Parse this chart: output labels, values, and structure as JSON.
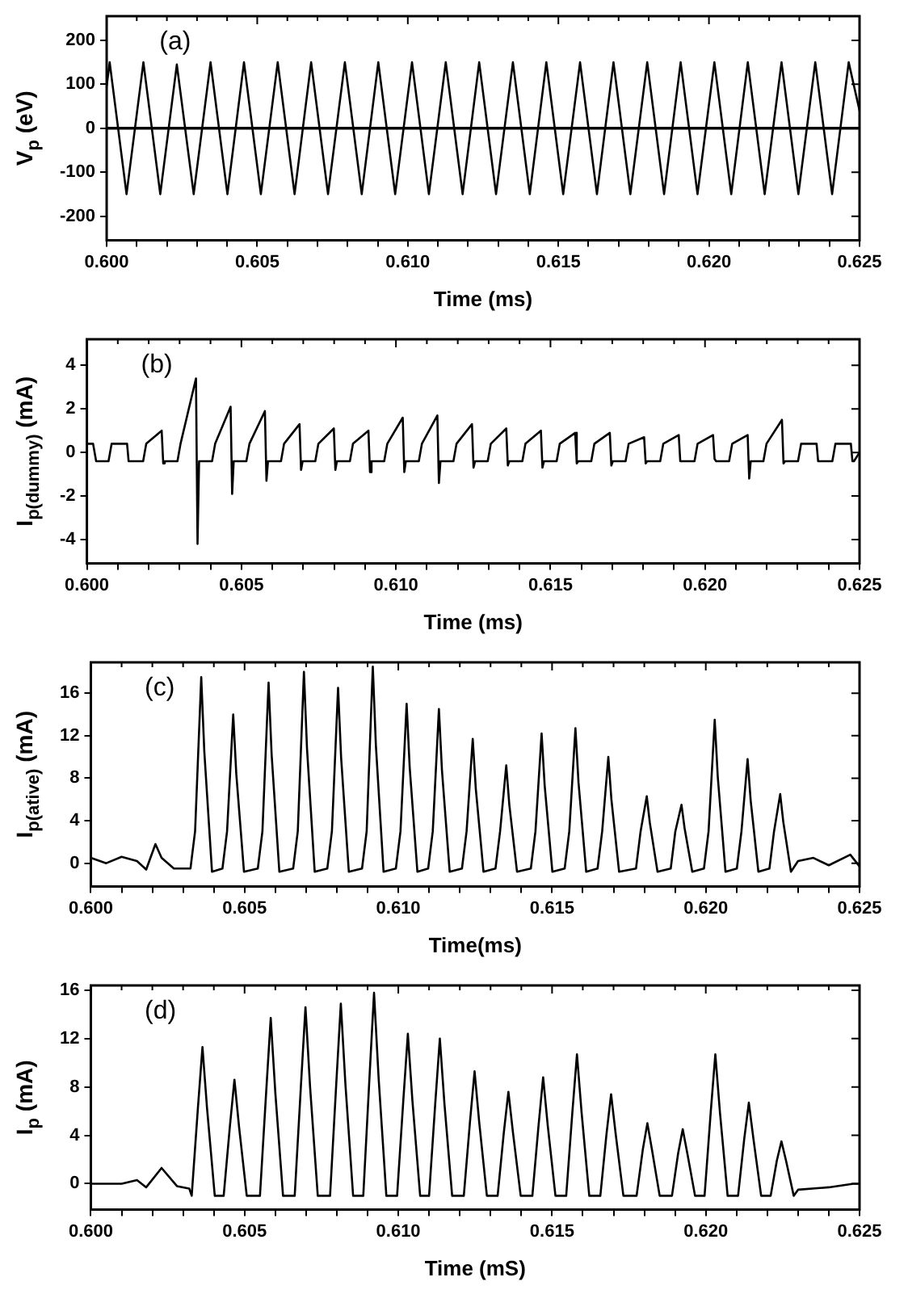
{
  "chart_data": [
    {
      "type": "line",
      "ylabel": "V$_{p}$ (eV)",
      "xlabel": "Time (ms)",
      "annotations": [
        "(a)"
      ],
      "marker": "none",
      "line_style": "solid",
      "grid": false,
      "legend": false,
      "xlim": [
        0.6,
        0.625
      ],
      "ylim": [
        -255,
        255
      ],
      "yticks": [
        -200,
        -100,
        0,
        100,
        200
      ],
      "xticks": [
        {
          "value": 0.6,
          "label": "0.600"
        },
        {
          "value": 0.601,
          "label": null
        },
        {
          "value": 0.602,
          "label": null
        },
        {
          "value": 0.603,
          "label": null
        },
        {
          "value": 0.604,
          "label": null
        },
        {
          "value": 0.605,
          "label": "0.605"
        },
        {
          "value": 0.606,
          "label": null
        },
        {
          "value": 0.607,
          "label": null
        },
        {
          "value": 0.608,
          "label": null
        },
        {
          "value": 0.609,
          "label": null
        },
        {
          "value": 0.61,
          "label": "0.610"
        },
        {
          "value": 0.611,
          "label": null
        },
        {
          "value": 0.612,
          "label": null
        },
        {
          "value": 0.613,
          "label": null
        },
        {
          "value": 0.614,
          "label": null
        },
        {
          "value": 0.615,
          "label": "0.615"
        },
        {
          "value": 0.616,
          "label": null
        },
        {
          "value": 0.617,
          "label": null
        },
        {
          "value": 0.618,
          "label": null
        },
        {
          "value": 0.619,
          "label": null
        },
        {
          "value": 0.62,
          "label": "0.620"
        },
        {
          "value": 0.621,
          "label": null
        },
        {
          "value": 0.622,
          "label": null
        },
        {
          "value": 0.623,
          "label": null
        },
        {
          "value": 0.624,
          "label": null
        },
        {
          "value": 0.625,
          "label": "0.625"
        }
      ],
      "ref_lines": [
        {
          "axis": "y",
          "value": 0,
          "color": "#000000"
        }
      ],
      "x": [
        0.6,
        0.6001,
        0.60066,
        0.60122,
        0.60178,
        0.60233,
        0.60289,
        0.60345,
        0.60401,
        0.60456,
        0.60512,
        0.60568,
        0.60624,
        0.60679,
        0.60735,
        0.60791,
        0.60847,
        0.60902,
        0.60958,
        0.61014,
        0.6107,
        0.61126,
        0.61182,
        0.61237,
        0.61293,
        0.61349,
        0.61405,
        0.6146,
        0.61516,
        0.61572,
        0.61628,
        0.61683,
        0.61739,
        0.61795,
        0.61851,
        0.61906,
        0.61962,
        0.62018,
        0.62074,
        0.62129,
        0.62185,
        0.62241,
        0.62297,
        0.62353,
        0.62409,
        0.62464,
        0.625
      ],
      "series": [
        {
          "color": "#000000",
          "values": [
            96,
            150,
            -150,
            150,
            -150,
            145,
            -150,
            150,
            -150,
            150,
            -150,
            150,
            -150,
            150,
            -150,
            150,
            -150,
            150,
            -150,
            150,
            -150,
            150,
            -150,
            150,
            -150,
            150,
            -150,
            150,
            -150,
            150,
            -150,
            150,
            -150,
            150,
            -150,
            150,
            -150,
            150,
            -150,
            150,
            -150,
            150,
            -150,
            150,
            -150,
            150,
            40
          ]
        }
      ]
    },
    {
      "type": "line",
      "ylabel": "I$_{p(dummy)}$ (mA)",
      "xlabel": "Time (ms)",
      "annotations": [
        "(b)"
      ],
      "marker": "none",
      "line_style": "solid",
      "grid": false,
      "legend": false,
      "xlim": [
        0.6,
        0.625
      ],
      "ylim": [
        -5.1,
        5.2
      ],
      "yticks": [
        -4,
        -2,
        0,
        2,
        4
      ],
      "xticks": [
        {
          "value": 0.6,
          "label": "0.600"
        },
        {
          "value": 0.601,
          "label": null
        },
        {
          "value": 0.602,
          "label": null
        },
        {
          "value": 0.603,
          "label": null
        },
        {
          "value": 0.604,
          "label": null
        },
        {
          "value": 0.605,
          "label": "0.605"
        },
        {
          "value": 0.606,
          "label": null
        },
        {
          "value": 0.607,
          "label": null
        },
        {
          "value": 0.608,
          "label": null
        },
        {
          "value": 0.609,
          "label": null
        },
        {
          "value": 0.61,
          "label": "0.610"
        },
        {
          "value": 0.611,
          "label": null
        },
        {
          "value": 0.612,
          "label": null
        },
        {
          "value": 0.613,
          "label": null
        },
        {
          "value": 0.614,
          "label": null
        },
        {
          "value": 0.615,
          "label": "0.615"
        },
        {
          "value": 0.616,
          "label": null
        },
        {
          "value": 0.617,
          "label": null
        },
        {
          "value": 0.618,
          "label": null
        },
        {
          "value": 0.619,
          "label": null
        },
        {
          "value": 0.62,
          "label": "0.620"
        },
        {
          "value": 0.621,
          "label": null
        },
        {
          "value": 0.622,
          "label": null
        },
        {
          "value": 0.623,
          "label": null
        },
        {
          "value": 0.624,
          "label": null
        },
        {
          "value": 0.625,
          "label": "0.625"
        }
      ],
      "x": [
        0.6,
        0.6002,
        0.6003,
        0.6007,
        0.6008,
        0.6013,
        0.60135,
        0.6014,
        0.60182,
        0.60192,
        0.60242,
        0.60247,
        0.60252,
        0.60293,
        0.60303,
        0.60353,
        0.60358,
        0.60363,
        0.60405,
        0.60415,
        0.60465,
        0.6047,
        0.60475,
        0.60516,
        0.60526,
        0.60576,
        0.60581,
        0.60586,
        0.60628,
        0.60638,
        0.60688,
        0.60693,
        0.60698,
        0.60739,
        0.60749,
        0.60799,
        0.60804,
        0.60809,
        0.60851,
        0.60861,
        0.60911,
        0.60916,
        0.60921,
        0.60962,
        0.60972,
        0.61022,
        0.61027,
        0.61032,
        0.61074,
        0.61084,
        0.61134,
        0.61139,
        0.61144,
        0.61186,
        0.61196,
        0.61246,
        0.61251,
        0.61256,
        0.61297,
        0.61307,
        0.61357,
        0.61362,
        0.61367,
        0.61409,
        0.61419,
        0.61469,
        0.61474,
        0.61479,
        0.6152,
        0.6153,
        0.6158,
        0.61585,
        0.6159,
        0.61632,
        0.61642,
        0.61692,
        0.61697,
        0.61702,
        0.61743,
        0.61753,
        0.61803,
        0.61808,
        0.61813,
        0.61855,
        0.61865,
        0.61915,
        0.6192,
        0.61925,
        0.61966,
        0.61976,
        0.62026,
        0.62031,
        0.62036,
        0.62078,
        0.62088,
        0.62138,
        0.62143,
        0.62148,
        0.62189,
        0.62199,
        0.62249,
        0.62254,
        0.62259,
        0.62301,
        0.62311,
        0.62361,
        0.62366,
        0.62371,
        0.62412,
        0.62422,
        0.62472,
        0.62477,
        0.62482,
        0.625
      ],
      "series": [
        {
          "color": "#000000",
          "values": [
            0.4,
            0.4,
            -0.4,
            -0.4,
            0.4,
            0.4,
            -0.4,
            -0.4,
            -0.4,
            0.4,
            1.0,
            -0.5,
            -0.4,
            -0.4,
            0.4,
            3.4,
            -4.2,
            -0.4,
            -0.4,
            0.4,
            2.1,
            -1.9,
            -0.4,
            -0.4,
            0.4,
            1.9,
            -1.3,
            -0.4,
            -0.4,
            0.4,
            1.3,
            -0.8,
            -0.4,
            -0.4,
            0.4,
            1.1,
            -0.8,
            -0.4,
            -0.4,
            0.4,
            1.0,
            -0.9,
            -0.4,
            -0.4,
            0.4,
            1.6,
            -0.9,
            -0.4,
            -0.4,
            0.4,
            1.7,
            -1.4,
            -0.4,
            -0.4,
            0.4,
            1.3,
            -0.7,
            -0.4,
            -0.4,
            0.4,
            1.1,
            -0.6,
            -0.4,
            -0.4,
            0.4,
            1.0,
            -0.7,
            -0.4,
            -0.4,
            0.4,
            0.9,
            -0.5,
            -0.4,
            -0.4,
            0.4,
            0.9,
            -0.6,
            -0.4,
            -0.4,
            0.4,
            0.7,
            -0.5,
            -0.4,
            -0.4,
            0.4,
            0.8,
            -0.4,
            -0.4,
            -0.4,
            0.4,
            0.8,
            -0.3,
            -0.4,
            -0.4,
            0.4,
            0.8,
            -1.2,
            -0.4,
            -0.4,
            0.4,
            1.5,
            -0.5,
            -0.4,
            -0.4,
            0.4,
            0.4,
            -0.4,
            -0.4,
            -0.4,
            0.4,
            0.4,
            -0.4,
            -0.4,
            0
          ]
        }
      ]
    },
    {
      "type": "line",
      "ylabel": "I$_{p(ative)}$ (mA)",
      "xlabel": "Time(ms)",
      "annotations": [
        "(c)"
      ],
      "marker": "none",
      "line_style": "solid",
      "grid": false,
      "legend": false,
      "xlim": [
        0.6,
        0.625
      ],
      "ylim": [
        -2.2,
        18.9
      ],
      "yticks": [
        0,
        4,
        8,
        12,
        16
      ],
      "xticks": [
        {
          "value": 0.6,
          "label": "0.600"
        },
        {
          "value": 0.601,
          "label": null
        },
        {
          "value": 0.602,
          "label": null
        },
        {
          "value": 0.603,
          "label": null
        },
        {
          "value": 0.604,
          "label": null
        },
        {
          "value": 0.605,
          "label": "0.605"
        },
        {
          "value": 0.606,
          "label": null
        },
        {
          "value": 0.607,
          "label": null
        },
        {
          "value": 0.608,
          "label": null
        },
        {
          "value": 0.609,
          "label": null
        },
        {
          "value": 0.61,
          "label": "0.610"
        },
        {
          "value": 0.611,
          "label": null
        },
        {
          "value": 0.612,
          "label": null
        },
        {
          "value": 0.613,
          "label": null
        },
        {
          "value": 0.614,
          "label": null
        },
        {
          "value": 0.615,
          "label": "0.615"
        },
        {
          "value": 0.616,
          "label": null
        },
        {
          "value": 0.617,
          "label": null
        },
        {
          "value": 0.618,
          "label": null
        },
        {
          "value": 0.619,
          "label": null
        },
        {
          "value": 0.62,
          "label": "0.620"
        },
        {
          "value": 0.621,
          "label": null
        },
        {
          "value": 0.622,
          "label": null
        },
        {
          "value": 0.623,
          "label": null
        },
        {
          "value": 0.624,
          "label": null
        },
        {
          "value": 0.625,
          "label": "0.625"
        }
      ],
      "x": [
        0.6,
        0.6005,
        0.601,
        0.6015,
        0.6018,
        0.6021,
        0.6023,
        0.6027,
        0.60324,
        0.60339,
        0.60359,
        0.60369,
        0.60394,
        0.60428,
        0.60443,
        0.60463,
        0.60473,
        0.60498,
        0.60543,
        0.60558,
        0.60578,
        0.60588,
        0.60613,
        0.60658,
        0.60673,
        0.60693,
        0.60703,
        0.60728,
        0.60769,
        0.60784,
        0.60804,
        0.60814,
        0.60839,
        0.60882,
        0.60897,
        0.60917,
        0.60927,
        0.60952,
        0.60992,
        0.61007,
        0.61027,
        0.61037,
        0.61062,
        0.61097,
        0.61112,
        0.61132,
        0.61142,
        0.61167,
        0.61207,
        0.61222,
        0.61242,
        0.61252,
        0.61277,
        0.61316,
        0.61331,
        0.61351,
        0.61361,
        0.61386,
        0.61431,
        0.61446,
        0.61466,
        0.61476,
        0.61501,
        0.61541,
        0.61556,
        0.61576,
        0.61586,
        0.61611,
        0.61648,
        0.61663,
        0.61683,
        0.61693,
        0.61718,
        0.61773,
        0.61788,
        0.61808,
        0.61818,
        0.61843,
        0.61886,
        0.61901,
        0.61921,
        0.61931,
        0.61956,
        0.61994,
        0.62009,
        0.62029,
        0.62039,
        0.62064,
        0.62101,
        0.62116,
        0.62136,
        0.62146,
        0.62171,
        0.62207,
        0.62222,
        0.62242,
        0.62252,
        0.62277,
        0.623,
        0.6235,
        0.624,
        0.6247,
        0.625
      ],
      "series": [
        {
          "color": "#000000",
          "values": [
            0.5,
            0,
            0.6,
            0.2,
            -0.6,
            1.8,
            0.5,
            -0.5,
            -0.5,
            3,
            17.5,
            10.5,
            -0.8,
            -0.5,
            3,
            14,
            8.4,
            -0.8,
            -0.5,
            3,
            17,
            10.2,
            -0.8,
            -0.5,
            3,
            18,
            10.8,
            -0.8,
            -0.5,
            3,
            16.5,
            9.9,
            -0.8,
            -0.5,
            3,
            18.5,
            11.1,
            -0.8,
            -0.5,
            3,
            15,
            9,
            -0.8,
            -0.5,
            3,
            14.5,
            8.7,
            -0.8,
            -0.5,
            3,
            11.7,
            7,
            -0.8,
            -0.5,
            3,
            9.2,
            5.5,
            -0.8,
            -0.5,
            3,
            12.2,
            7.3,
            -0.8,
            -0.5,
            3,
            12.7,
            7.6,
            -0.8,
            -0.5,
            3,
            10,
            6,
            -0.8,
            -0.5,
            3,
            6.3,
            3.8,
            -0.8,
            -0.5,
            3,
            5.5,
            3.3,
            -0.8,
            -0.5,
            3,
            13.5,
            8.1,
            -0.8,
            -0.5,
            3,
            9.8,
            5.9,
            -0.8,
            -0.5,
            3,
            6.5,
            3.9,
            -0.8,
            0.2,
            0.5,
            -0.2,
            0.8,
            -0.3
          ]
        }
      ]
    },
    {
      "type": "line",
      "ylabel": "I$_{p}$ (mA)",
      "xlabel": "Time (mS)",
      "annotations": [
        "(d)"
      ],
      "marker": "none",
      "line_style": "solid",
      "grid": false,
      "legend": false,
      "xlim": [
        0.6,
        0.625
      ],
      "ylim": [
        -2.15,
        16.4
      ],
      "yticks": [
        0,
        4,
        8,
        12,
        16
      ],
      "xticks": [
        {
          "value": 0.6,
          "label": "0.600"
        },
        {
          "value": 0.601,
          "label": null
        },
        {
          "value": 0.602,
          "label": null
        },
        {
          "value": 0.603,
          "label": null
        },
        {
          "value": 0.604,
          "label": null
        },
        {
          "value": 0.605,
          "label": "0.605"
        },
        {
          "value": 0.606,
          "label": null
        },
        {
          "value": 0.607,
          "label": null
        },
        {
          "value": 0.608,
          "label": null
        },
        {
          "value": 0.609,
          "label": null
        },
        {
          "value": 0.61,
          "label": "0.610"
        },
        {
          "value": 0.611,
          "label": null
        },
        {
          "value": 0.612,
          "label": null
        },
        {
          "value": 0.613,
          "label": null
        },
        {
          "value": 0.614,
          "label": null
        },
        {
          "value": 0.615,
          "label": "0.615"
        },
        {
          "value": 0.616,
          "label": null
        },
        {
          "value": 0.617,
          "label": null
        },
        {
          "value": 0.618,
          "label": null
        },
        {
          "value": 0.619,
          "label": null
        },
        {
          "value": 0.62,
          "label": "0.620"
        },
        {
          "value": 0.621,
          "label": null
        },
        {
          "value": 0.622,
          "label": null
        },
        {
          "value": 0.623,
          "label": null
        },
        {
          "value": 0.624,
          "label": null
        },
        {
          "value": 0.625,
          "label": "0.625"
        }
      ],
      "x": [
        0.6,
        0.601,
        0.6015,
        0.6018,
        0.6023,
        0.6028,
        0.6032,
        0.60328,
        0.60348,
        0.60363,
        0.60378,
        0.60403,
        0.60432,
        0.60452,
        0.60467,
        0.60482,
        0.60507,
        0.6055,
        0.6057,
        0.60585,
        0.606,
        0.60625,
        0.60663,
        0.60683,
        0.60698,
        0.60713,
        0.60738,
        0.60778,
        0.60798,
        0.60813,
        0.60828,
        0.60853,
        0.60886,
        0.60906,
        0.60921,
        0.60936,
        0.60961,
        0.60996,
        0.61016,
        0.61031,
        0.61046,
        0.61071,
        0.611,
        0.6112,
        0.61135,
        0.6115,
        0.61175,
        0.61213,
        0.61233,
        0.61248,
        0.61263,
        0.61288,
        0.61323,
        0.61343,
        0.61358,
        0.61373,
        0.61398,
        0.61436,
        0.61456,
        0.61471,
        0.61486,
        0.61511,
        0.61546,
        0.61566,
        0.61581,
        0.61596,
        0.61621,
        0.61657,
        0.61677,
        0.61692,
        0.61707,
        0.61732,
        0.61775,
        0.61795,
        0.6181,
        0.61825,
        0.6185,
        0.6189,
        0.6191,
        0.61925,
        0.6194,
        0.61965,
        0.61996,
        0.62016,
        0.62031,
        0.62046,
        0.62071,
        0.62105,
        0.62125,
        0.6214,
        0.62155,
        0.6218,
        0.62211,
        0.62231,
        0.62246,
        0.62261,
        0.62286,
        0.623,
        0.624,
        0.6248,
        0.625
      ],
      "series": [
        {
          "color": "#000000",
          "values": [
            0,
            0,
            0.3,
            -0.3,
            1.3,
            -0.2,
            -0.4,
            -1.0,
            6.2,
            11.3,
            6.2,
            -1.0,
            -1.0,
            4.7,
            8.6,
            4.7,
            -1.0,
            -1.0,
            7.5,
            13.7,
            7.5,
            -1.0,
            -1.0,
            8,
            14.6,
            8,
            -1.0,
            -1.0,
            8.2,
            14.9,
            8.2,
            -1.0,
            -1.0,
            8.7,
            15.8,
            8.7,
            -1.0,
            -1.0,
            6.8,
            12.4,
            6.8,
            -1.0,
            -1.0,
            6.6,
            12,
            6.6,
            -1.0,
            -1.0,
            5.1,
            9.3,
            5.1,
            -1.0,
            -1.0,
            4.2,
            7.6,
            4.2,
            -1.0,
            -1.0,
            4.8,
            8.8,
            4.8,
            -1.0,
            -1.0,
            5.9,
            10.7,
            5.9,
            -1.0,
            -1.0,
            4.1,
            7.4,
            4.1,
            -1.0,
            -1.0,
            2.8,
            5,
            2.8,
            -1.0,
            -1.0,
            2.5,
            4.5,
            2.5,
            -1.0,
            -1.0,
            5.9,
            10.7,
            5.9,
            -1.0,
            -1.0,
            3.7,
            6.7,
            3.7,
            -1.0,
            -1.0,
            1.9,
            3.5,
            1.9,
            -1.0,
            -0.5,
            -0.3,
            0,
            0
          ]
        }
      ]
    }
  ]
}
